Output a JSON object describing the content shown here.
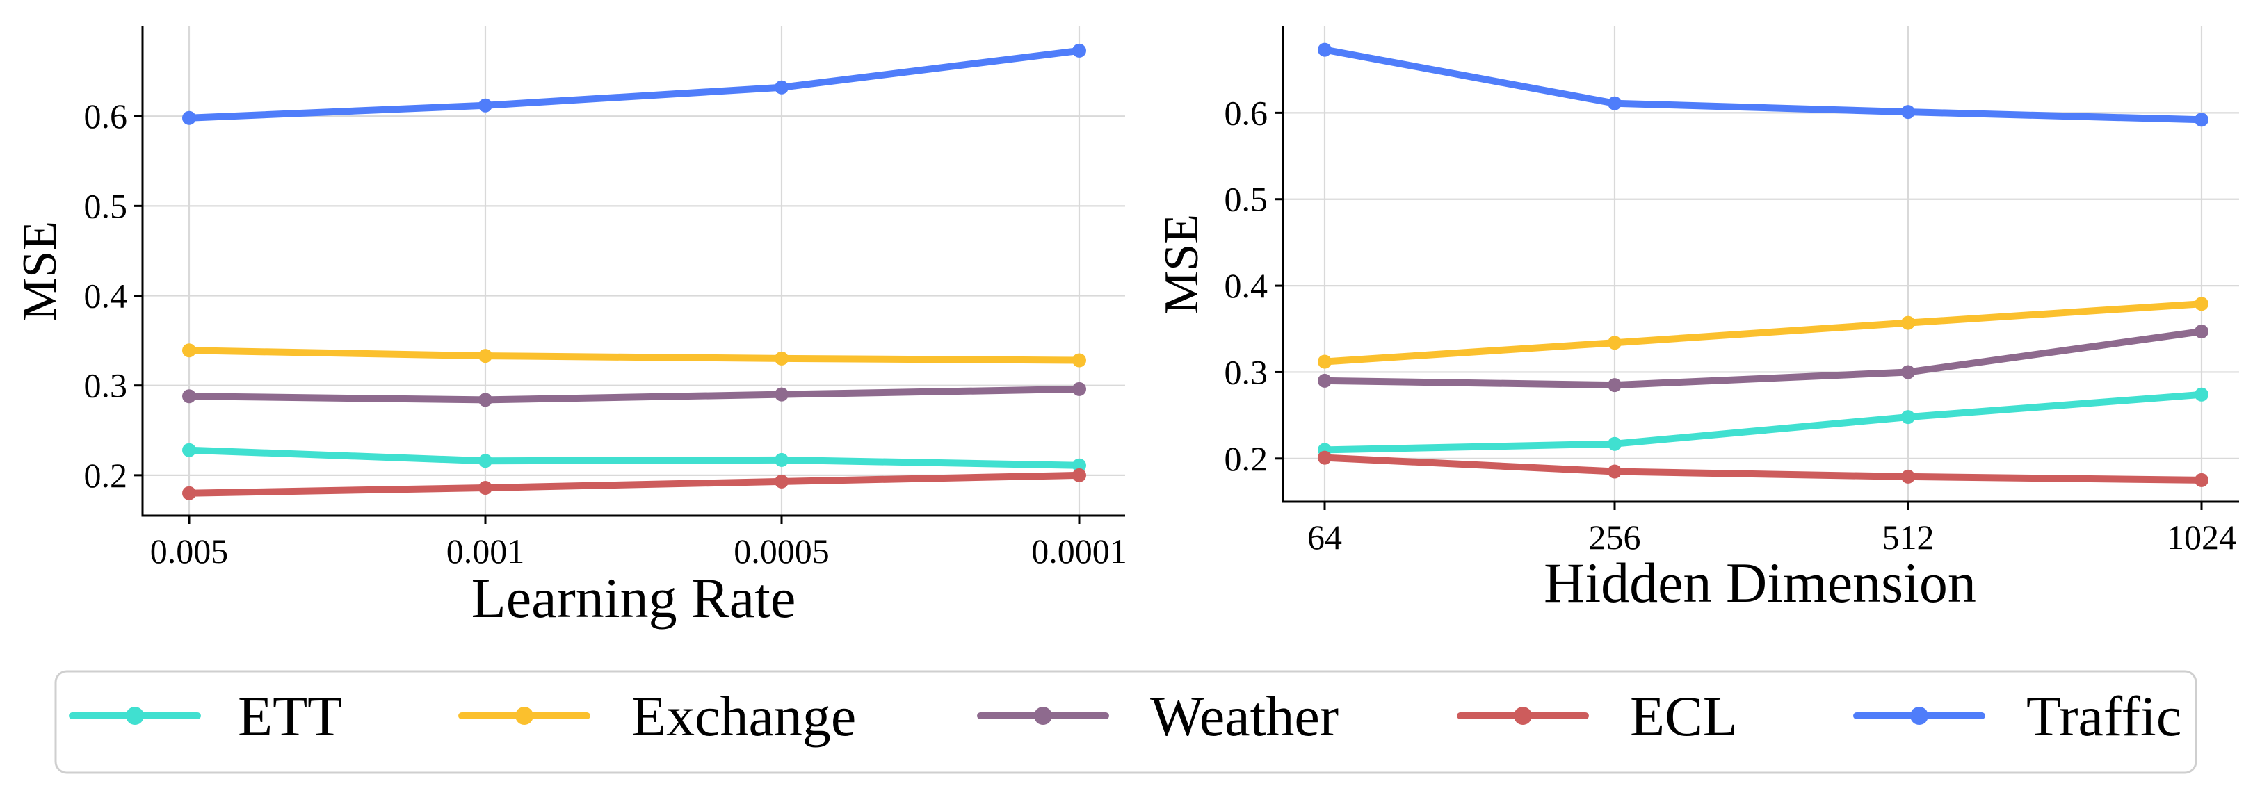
{
  "chart_data": [
    {
      "type": "line",
      "panel": "left",
      "title": "",
      "xlabel": "Learning Rate",
      "ylabel": "MSE",
      "categories": [
        "0.005",
        "0.001",
        "0.0005",
        "0.0001"
      ],
      "yticks": [
        "0.2",
        "0.3",
        "0.4",
        "0.5",
        "0.6"
      ],
      "ytick_values": [
        0.2,
        0.3,
        0.4,
        0.5,
        0.6
      ],
      "ylim": [
        0.155,
        0.7
      ],
      "grid": true,
      "series": [
        {
          "name": "ETT",
          "values": [
            0.228,
            0.216,
            0.217,
            0.211
          ]
        },
        {
          "name": "Exchange",
          "values": [
            0.339,
            0.333,
            0.33,
            0.328
          ]
        },
        {
          "name": "Weather",
          "values": [
            0.288,
            0.284,
            0.29,
            0.296
          ]
        },
        {
          "name": "ECL",
          "values": [
            0.18,
            0.186,
            0.193,
            0.2
          ]
        },
        {
          "name": "Traffic",
          "values": [
            0.598,
            0.612,
            0.632,
            0.673
          ]
        }
      ]
    },
    {
      "type": "line",
      "panel": "right",
      "title": "",
      "xlabel": "Hidden Dimension",
      "ylabel": "MSE",
      "categories": [
        "64",
        "256",
        "512",
        "1024"
      ],
      "yticks": [
        "0.2",
        "0.3",
        "0.4",
        "0.5",
        "0.6"
      ],
      "ytick_values": [
        0.2,
        0.3,
        0.4,
        0.5,
        0.6
      ],
      "ylim": [
        0.15,
        0.7
      ],
      "grid": true,
      "series": [
        {
          "name": "ETT",
          "values": [
            0.21,
            0.217,
            0.248,
            0.274
          ]
        },
        {
          "name": "Exchange",
          "values": [
            0.312,
            0.334,
            0.357,
            0.379
          ]
        },
        {
          "name": "Weather",
          "values": [
            0.29,
            0.285,
            0.3,
            0.347
          ]
        },
        {
          "name": "ECL",
          "values": [
            0.201,
            0.185,
            0.179,
            0.175
          ]
        },
        {
          "name": "Traffic",
          "values": [
            0.673,
            0.611,
            0.601,
            0.592
          ]
        }
      ]
    }
  ],
  "legend": {
    "placement": "bottom",
    "items": [
      "ETT",
      "Exchange",
      "Weather",
      "ECL",
      "Traffic"
    ]
  },
  "colors": {
    "ETT": "#40e0d0",
    "Exchange": "#fbc02d",
    "Weather": "#8e6a8e",
    "ECL": "#cd5c5c",
    "Traffic": "#4f7dfa"
  }
}
